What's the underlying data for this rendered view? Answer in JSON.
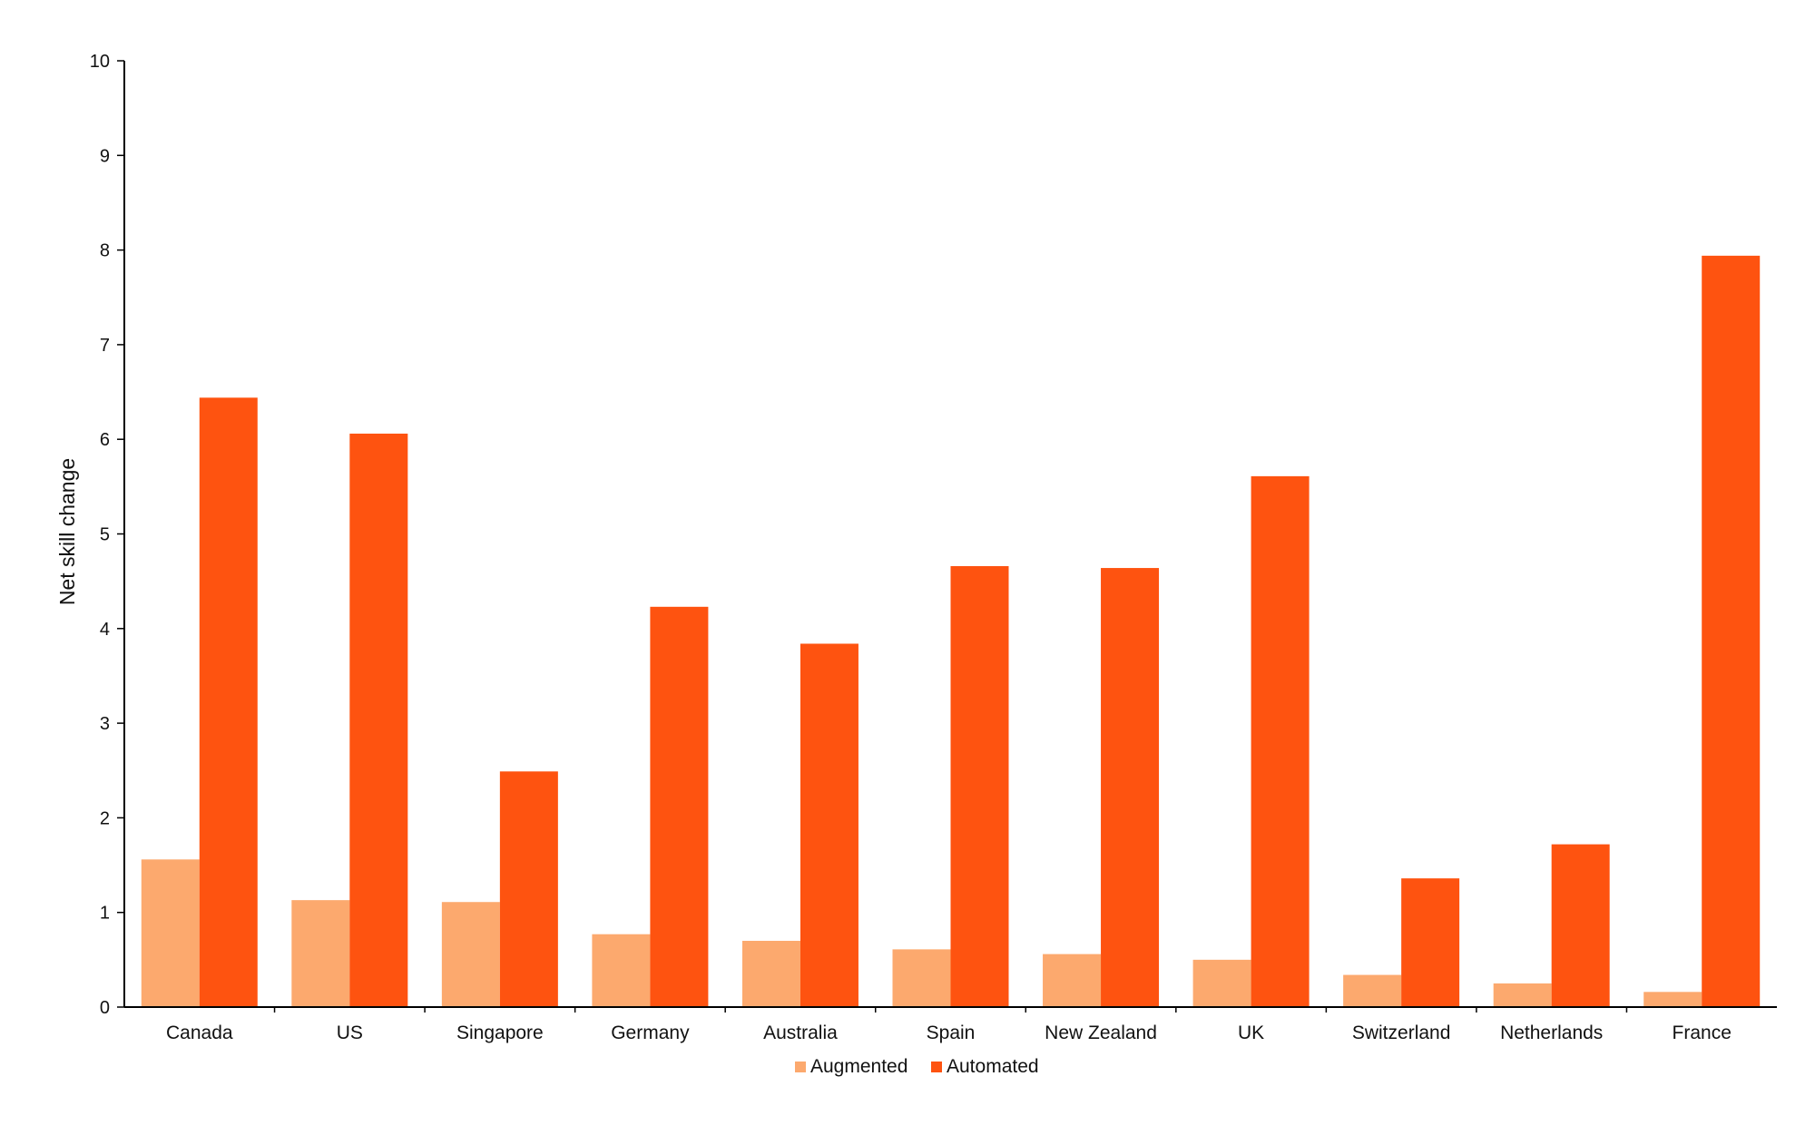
{
  "chart_data": {
    "type": "bar",
    "title": "",
    "xlabel": "",
    "ylabel": "Net skill change",
    "ylim": [
      0,
      10
    ],
    "yticks": [
      "0",
      "1",
      "2",
      "3",
      "4",
      "5",
      "6",
      "7",
      "8",
      "9",
      "10"
    ],
    "grid": false,
    "legend_position": "bottom-center",
    "categories": [
      "Canada",
      "US",
      "Singapore",
      "Germany",
      "Australia",
      "Spain",
      "New Zealand",
      "UK",
      "Switzerland",
      "Netherlands",
      "France"
    ],
    "series": [
      {
        "name": "Augmented",
        "color": "#FCA96E",
        "values": [
          1.56,
          1.13,
          1.11,
          0.77,
          0.7,
          0.61,
          0.56,
          0.5,
          0.34,
          0.25,
          0.16
        ]
      },
      {
        "name": "Automated",
        "color": "#FE5310",
        "values": [
          6.44,
          6.06,
          2.49,
          4.23,
          3.84,
          4.66,
          4.64,
          5.61,
          1.36,
          1.72,
          7.94
        ]
      }
    ]
  }
}
